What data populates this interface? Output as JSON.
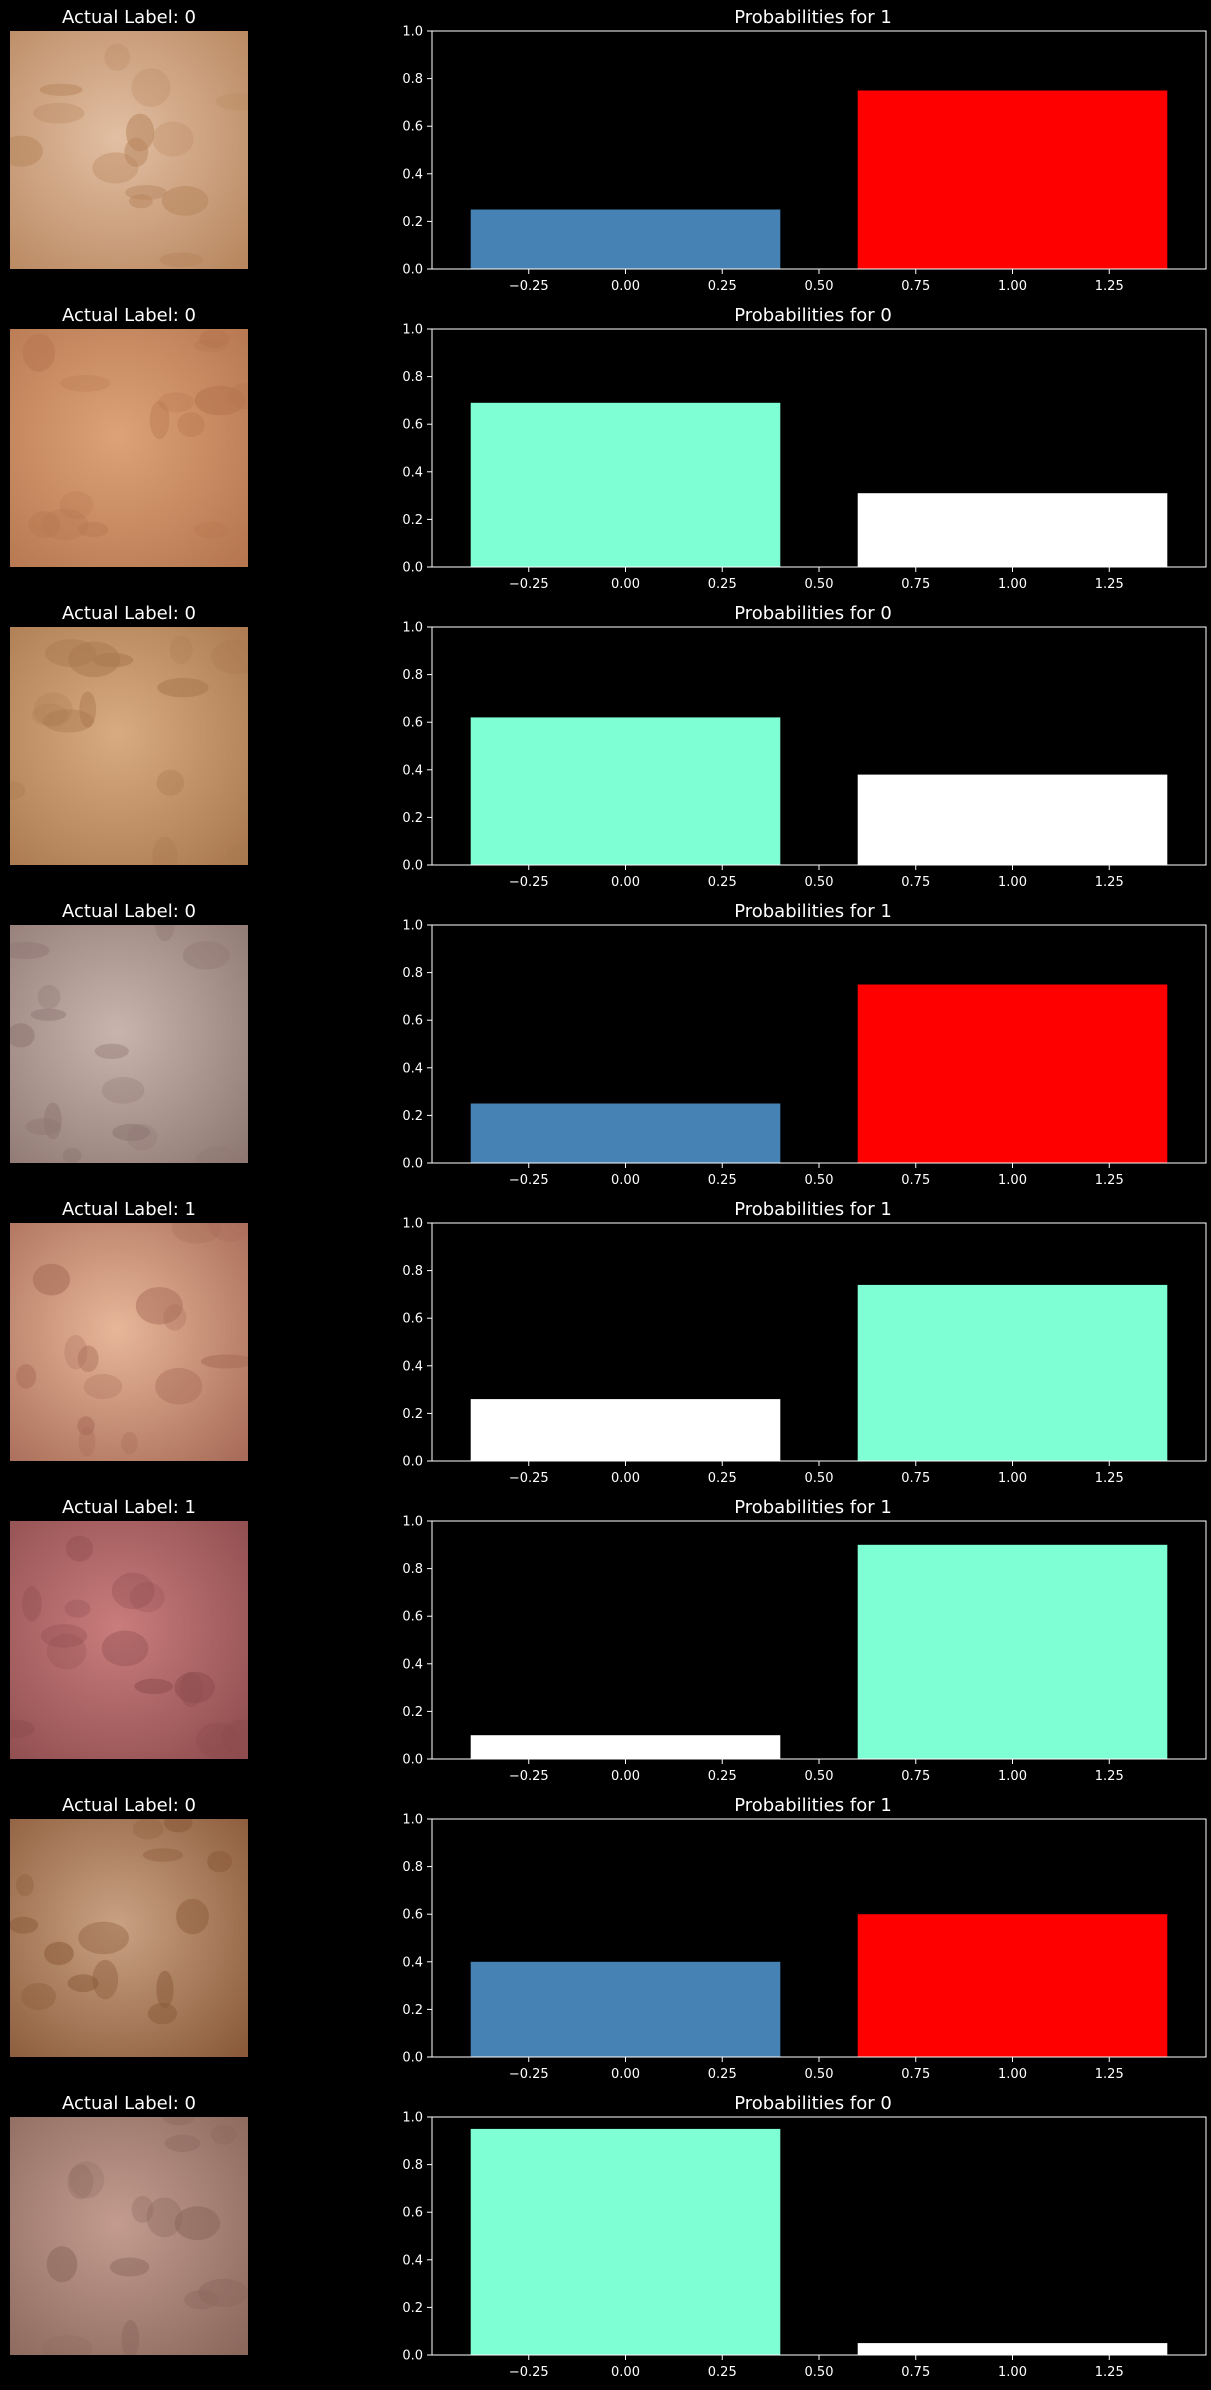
{
  "chart_data": [
    {
      "type": "bar",
      "image_title": "Actual Label: 0",
      "title": "Probabilities for 1",
      "x": [
        0,
        1
      ],
      "values": [
        0.25,
        0.75
      ],
      "bar_colors": [
        "#4682b4",
        "#ff0000"
      ],
      "xlim": [
        -0.5,
        1.5
      ],
      "ylim": [
        0,
        1.0
      ],
      "xticks": [
        "−0.25",
        "0.00",
        "0.25",
        "0.50",
        "0.75",
        "1.00",
        "1.25"
      ],
      "yticks": [
        "0.0",
        "0.2",
        "0.4",
        "0.6",
        "0.8",
        "1.0"
      ],
      "image_tone": [
        "#e2bfa3",
        "#b8875f"
      ]
    },
    {
      "type": "bar",
      "image_title": "Actual Label: 0",
      "title": "Probabilities for 0",
      "x": [
        0,
        1
      ],
      "values": [
        0.69,
        0.31
      ],
      "bar_colors": [
        "#7fffd4",
        "#ffffff"
      ],
      "xlim": [
        -0.5,
        1.5
      ],
      "ylim": [
        0,
        1.0
      ],
      "xticks": [
        "−0.25",
        "0.00",
        "0.25",
        "0.50",
        "0.75",
        "1.00",
        "1.25"
      ],
      "yticks": [
        "0.0",
        "0.2",
        "0.4",
        "0.6",
        "0.8",
        "1.0"
      ],
      "image_tone": [
        "#dda277",
        "#b57650"
      ]
    },
    {
      "type": "bar",
      "image_title": "Actual Label: 0",
      "title": "Probabilities for 0",
      "x": [
        0,
        1
      ],
      "values": [
        0.62,
        0.38
      ],
      "bar_colors": [
        "#7fffd4",
        "#ffffff"
      ],
      "xlim": [
        -0.5,
        1.5
      ],
      "ylim": [
        0,
        1.0
      ],
      "xticks": [
        "−0.25",
        "0.00",
        "0.25",
        "0.50",
        "0.75",
        "1.00",
        "1.25"
      ],
      "yticks": [
        "0.0",
        "0.2",
        "0.4",
        "0.6",
        "0.8",
        "1.0"
      ],
      "image_tone": [
        "#d9ab80",
        "#a9784f"
      ]
    },
    {
      "type": "bar",
      "image_title": "Actual Label: 0",
      "title": "Probabilities for 1",
      "x": [
        0,
        1
      ],
      "values": [
        0.25,
        0.75
      ],
      "bar_colors": [
        "#4682b4",
        "#ff0000"
      ],
      "xlim": [
        -0.5,
        1.5
      ],
      "ylim": [
        0,
        1.0
      ],
      "xticks": [
        "−0.25",
        "0.00",
        "0.25",
        "0.50",
        "0.75",
        "1.00",
        "1.25"
      ],
      "yticks": [
        "0.0",
        "0.2",
        "0.4",
        "0.6",
        "0.8",
        "1.0"
      ],
      "image_tone": [
        "#c9b4ad",
        "#8f7872"
      ]
    },
    {
      "type": "bar",
      "image_title": "Actual Label: 1",
      "title": "Probabilities for 1",
      "x": [
        0,
        1
      ],
      "values": [
        0.26,
        0.74
      ],
      "bar_colors": [
        "#ffffff",
        "#7fffd4"
      ],
      "xlim": [
        -0.5,
        1.5
      ],
      "ylim": [
        0,
        1.0
      ],
      "xticks": [
        "−0.25",
        "0.00",
        "0.25",
        "0.50",
        "0.75",
        "1.00",
        "1.25"
      ],
      "yticks": [
        "0.0",
        "0.2",
        "0.4",
        "0.6",
        "0.8",
        "1.0"
      ],
      "image_tone": [
        "#e7b699",
        "#a86c58"
      ]
    },
    {
      "type": "bar",
      "image_title": "Actual Label: 1",
      "title": "Probabilities for 1",
      "x": [
        0,
        1
      ],
      "values": [
        0.1,
        0.9
      ],
      "bar_colors": [
        "#ffffff",
        "#7fffd4"
      ],
      "xlim": [
        -0.5,
        1.5
      ],
      "ylim": [
        0,
        1.0
      ],
      "xticks": [
        "−0.25",
        "0.00",
        "0.25",
        "0.50",
        "0.75",
        "1.00",
        "1.25"
      ],
      "yticks": [
        "0.0",
        "0.2",
        "0.4",
        "0.6",
        "0.8",
        "1.0"
      ],
      "image_tone": [
        "#c97d7c",
        "#8e4c4e"
      ]
    },
    {
      "type": "bar",
      "image_title": "Actual Label: 0",
      "title": "Probabilities for 1",
      "x": [
        0,
        1
      ],
      "values": [
        0.4,
        0.6
      ],
      "bar_colors": [
        "#4682b4",
        "#ff0000"
      ],
      "xlim": [
        -0.5,
        1.5
      ],
      "ylim": [
        0,
        1.0
      ],
      "xticks": [
        "−0.25",
        "0.00",
        "0.25",
        "0.50",
        "0.75",
        "1.00",
        "1.25"
      ],
      "yticks": [
        "0.0",
        "0.2",
        "0.4",
        "0.6",
        "0.8",
        "1.0"
      ],
      "image_tone": [
        "#c9a283",
        "#8a5a3a"
      ]
    },
    {
      "type": "bar",
      "image_title": "Actual Label: 0",
      "title": "Probabilities for 0",
      "x": [
        0,
        1
      ],
      "values": [
        0.95,
        0.05
      ],
      "bar_colors": [
        "#7fffd4",
        "#ffffff"
      ],
      "xlim": [
        -0.5,
        1.5
      ],
      "ylim": [
        0,
        1.0
      ],
      "xticks": [
        "−0.25",
        "0.00",
        "0.25",
        "0.50",
        "0.75",
        "1.00",
        "1.25"
      ],
      "yticks": [
        "0.0",
        "0.2",
        "0.4",
        "0.6",
        "0.8",
        "1.0"
      ],
      "image_tone": [
        "#c39c8f",
        "#8b675c"
      ]
    }
  ]
}
